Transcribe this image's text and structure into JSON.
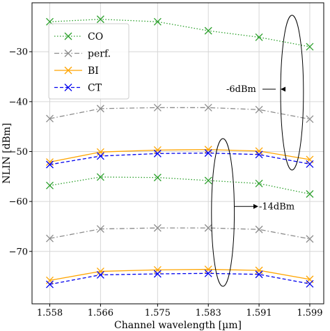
{
  "chart_data": {
    "type": "line",
    "xlabel": "Channel wavelength [µm]",
    "ylabel": "NLIN [dBm]",
    "x": [
      1.558,
      1.566,
      1.575,
      1.583,
      1.591,
      1.599
    ],
    "x_tick_labels": [
      "1.558",
      "1.566",
      "1.575",
      "1.583",
      "1.591",
      "1.599"
    ],
    "y_ticks": [
      -70,
      -60,
      -50,
      -40,
      -30
    ],
    "y_tick_labels": [
      "−70",
      "−60",
      "−50",
      "−40",
      "−30"
    ],
    "xlim": [
      1.5552,
      1.6012
    ],
    "ylim": [
      -80.5,
      -20.2
    ],
    "grid": true,
    "legend_position": "upper-left",
    "series": [
      {
        "name": "CO",
        "color": "#2ca02c",
        "dash": "dotted",
        "marker": "x",
        "values": [
          -24.0,
          -23.5,
          -24.0,
          -25.8,
          -27.1,
          -29.0
        ]
      },
      {
        "name": "perf.",
        "color": "#8c8c8c",
        "dash": "dashdot",
        "marker": "x",
        "values": [
          -43.4,
          -41.4,
          -41.2,
          -41.2,
          -41.6,
          -43.5
        ]
      },
      {
        "name": "BI",
        "color": "#ffa500",
        "dash": "solid",
        "marker": "x",
        "values": [
          -52.1,
          -50.1,
          -49.7,
          -49.6,
          -49.9,
          -51.6
        ]
      },
      {
        "name": "CT",
        "color": "#0000ee",
        "dash": "dashed",
        "marker": "x",
        "values": [
          -52.6,
          -50.9,
          -50.4,
          -50.3,
          -50.6,
          -52.5
        ]
      },
      {
        "name": "CO",
        "color": "#2ca02c",
        "dash": "dotted",
        "marker": "x",
        "values": [
          -56.8,
          -55.1,
          -55.2,
          -55.8,
          -56.4,
          -58.5
        ]
      },
      {
        "name": "perf.",
        "color": "#8c8c8c",
        "dash": "dashdot",
        "marker": "x",
        "values": [
          -67.4,
          -65.5,
          -65.3,
          -65.3,
          -65.6,
          -67.5
        ]
      },
      {
        "name": "BI",
        "color": "#ffa500",
        "dash": "solid",
        "marker": "x",
        "values": [
          -75.8,
          -74.0,
          -73.7,
          -73.6,
          -73.8,
          -75.6
        ]
      },
      {
        "name": "CT",
        "color": "#0000ee",
        "dash": "dashed",
        "marker": "x",
        "values": [
          -76.6,
          -74.7,
          -74.5,
          -74.4,
          -74.6,
          -76.5
        ]
      }
    ],
    "legend": [
      {
        "name": "CO",
        "color": "#2ca02c",
        "dash": "dotted"
      },
      {
        "name": "perf.",
        "color": "#8c8c8c",
        "dash": "dashdot"
      },
      {
        "name": "BI",
        "color": "#ffa500",
        "dash": "solid"
      },
      {
        "name": "CT",
        "color": "#0000ee",
        "dash": "dashed"
      }
    ],
    "annotations": [
      {
        "text": "-6dBm",
        "ellipse_center": [
          1.5962,
          -38.2
        ],
        "ellipse_radii": [
          0.0018,
          15.5
        ]
      },
      {
        "text": "-14dBm",
        "ellipse_center": [
          1.5853,
          -62.2
        ],
        "ellipse_radii": [
          0.0018,
          14.8
        ]
      }
    ]
  }
}
